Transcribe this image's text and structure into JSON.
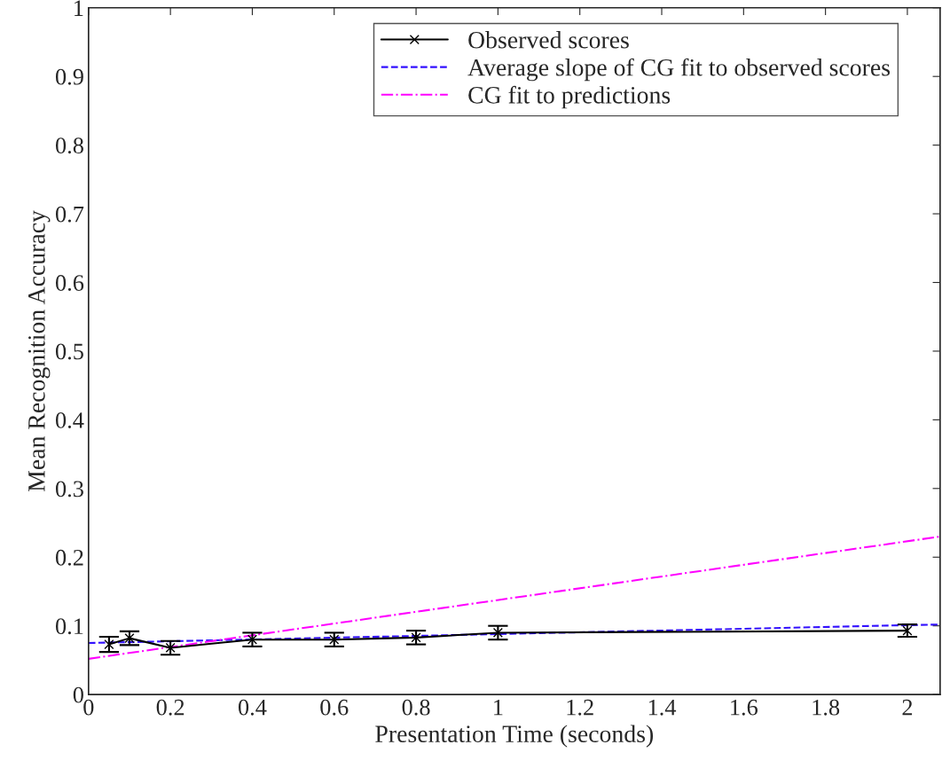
{
  "chart_data": {
    "type": "line",
    "xlabel": "Presentation Time (seconds)",
    "ylabel": "Mean Recognition Accuracy",
    "xlim": [
      0,
      2.08
    ],
    "xticks": [
      0,
      0.2,
      0.4,
      0.6,
      0.8,
      1,
      1.2,
      1.4,
      1.6,
      1.8,
      2
    ],
    "ylim": [
      0,
      1
    ],
    "yticks": [
      0,
      0.1,
      0.2,
      0.3,
      0.4,
      0.5,
      0.6,
      0.7,
      0.8,
      0.9,
      1
    ],
    "grid": false,
    "legend": "top right",
    "series": [
      {
        "name": "Observed scores",
        "color": "#000000",
        "marker": "cross",
        "line_style": "solid",
        "x": [
          0.05,
          0.1,
          0.2,
          0.4,
          0.6,
          0.8,
          1,
          2
        ],
        "values": [
          0.073,
          0.082,
          0.068,
          0.08,
          0.08,
          0.083,
          0.09,
          0.093
        ],
        "errors": [
          0.011,
          0.01,
          0.01,
          0.01,
          0.01,
          0.01,
          0.01,
          0.009
        ]
      },
      {
        "name": "Average slope of CG fit to observed scores",
        "color": "#3311ff",
        "marker": "none",
        "line_style": "dashed",
        "x": [
          0,
          2.08
        ],
        "values": [
          0.075,
          0.102
        ]
      },
      {
        "name": "CG fit to predictions",
        "color": "#ff00ff",
        "marker": "none",
        "line_style": "dashdot",
        "x": [
          0,
          2.08
        ],
        "values": [
          0.052,
          0.23
        ]
      }
    ]
  }
}
